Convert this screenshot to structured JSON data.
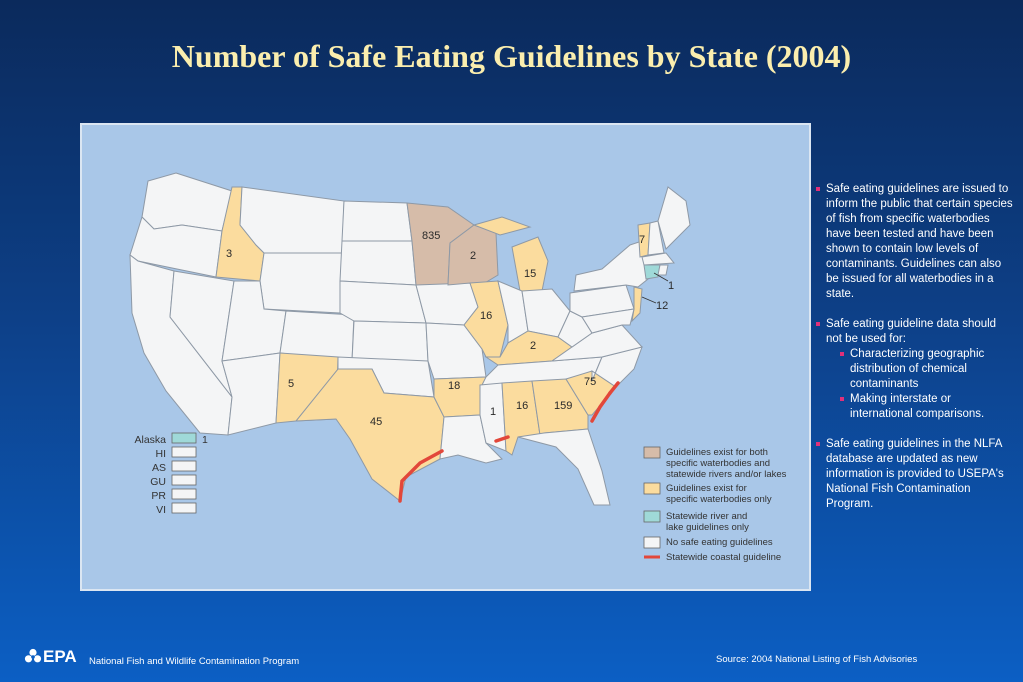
{
  "title": "Number of Safe Eating Guidelines by State (2004)",
  "legend": {
    "both": [
      "Guidelines exist for both",
      "specific waterbodies and",
      "statewide rivers and/or lakes"
    ],
    "specific": [
      "Guidelines exist for",
      "specific waterbodies only"
    ],
    "statewide": [
      "Statewide river and",
      "lake guidelines only"
    ],
    "none": [
      "No safe eating guidelines"
    ],
    "coastal": [
      "Statewide coastal guideline"
    ]
  },
  "legend_colors": {
    "both": "#d6bca9",
    "specific": "#fbdc9e",
    "statewide": "#9fd9d8",
    "none": "#f4f5f6",
    "coastal": "#e2473a"
  },
  "territories": [
    {
      "name": "Alaska",
      "value": "1",
      "category": "statewide"
    },
    {
      "name": "HI",
      "value": "",
      "category": "none"
    },
    {
      "name": "AS",
      "value": "",
      "category": "none"
    },
    {
      "name": "GU",
      "value": "",
      "category": "none"
    },
    {
      "name": "PR",
      "value": "",
      "category": "none"
    },
    {
      "name": "VI",
      "value": "",
      "category": "none"
    }
  ],
  "state_counts": {
    "ID": "3",
    "MN": "835",
    "WI": "2",
    "MI": "15",
    "IL": "16",
    "KY": "2",
    "NM": "5",
    "TX": "45",
    "AR": "18",
    "MS": "1",
    "AL": "16",
    "GA": "159",
    "SC": "75",
    "VT": "7",
    "CT": "1",
    "NJ": "12"
  },
  "notes": {
    "p1": "Safe eating guidelines are issued to inform the public that certain species of fish from specific waterbodies have been tested and have been shown to contain low levels of contaminants. Guidelines can also be issued for all waterbodies in a state.",
    "p2": "Safe eating guideline data should not be used for:",
    "p2_sub1": "Characterizing geographic distribution of chemical contaminants",
    "p2_sub2": "Making interstate or international comparisons.",
    "p3": "Safe eating guidelines in the NLFA database are updated as new information is provided to USEPA's National Fish Contamination Program."
  },
  "footer": {
    "logo_text": "EPA",
    "program": "National Fish and Wildlife Contamination Program",
    "source": "Source: 2004 National Listing of Fish Advisories"
  }
}
